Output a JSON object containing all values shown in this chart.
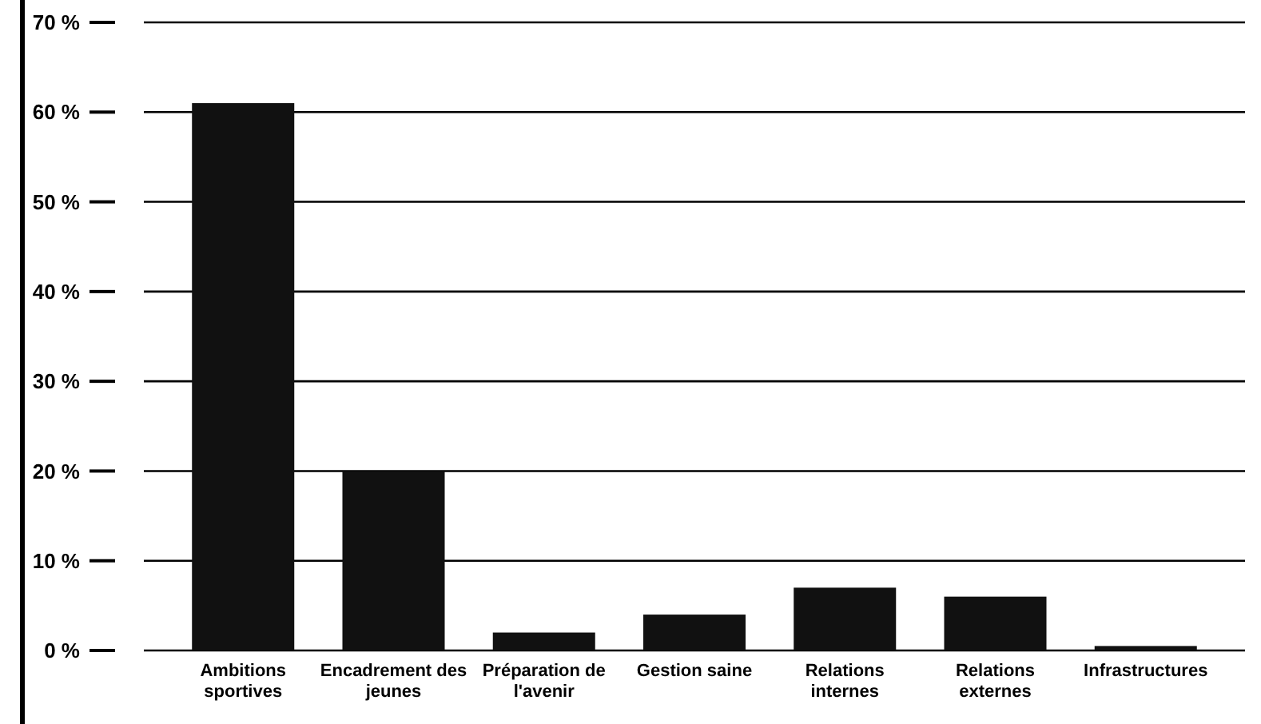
{
  "chart_data": {
    "type": "bar",
    "categories": [
      "Ambitions sportives",
      "Encadrement des jeunes",
      "Préparation de l'avenir",
      "Gestion saine",
      "Relations internes",
      "Relations externes",
      "Infrastructures"
    ],
    "values": [
      61,
      20,
      2,
      4,
      7,
      6,
      0.5
    ],
    "color": "#111111",
    "ylim": [
      0,
      70
    ],
    "yticks": [
      {
        "value": 0,
        "label": "0 %"
      },
      {
        "value": 10,
        "label": "10 %"
      },
      {
        "value": 20,
        "label": "20 %"
      },
      {
        "value": 30,
        "label": "30 %"
      },
      {
        "value": 40,
        "label": "40 %"
      },
      {
        "value": 50,
        "label": "50 %"
      },
      {
        "value": 60,
        "label": "60 %"
      },
      {
        "value": 70,
        "label": "70 %"
      }
    ],
    "grid": "y"
  }
}
